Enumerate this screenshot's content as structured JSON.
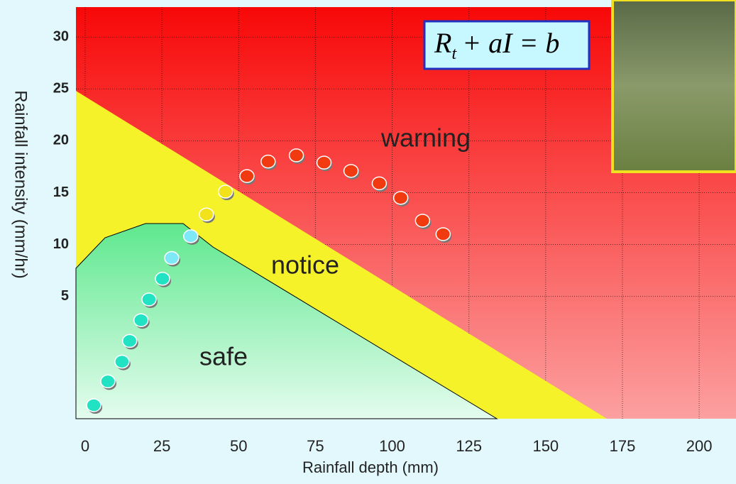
{
  "chart_data": {
    "type": "scatter",
    "x_label": "Rainfall depth  (mm)",
    "y_label": "Rainfall intensity  (mm/hr)",
    "xlim": [
      -3,
      212
    ],
    "ylim": [
      -6.8,
      32.9
    ],
    "xticks": [
      0,
      25,
      50,
      75,
      100,
      125,
      150,
      175,
      200
    ],
    "yticks": [
      5,
      10,
      15,
      20,
      25,
      30
    ],
    "grid": true,
    "annotations": [
      "warning",
      "notice",
      "safe"
    ],
    "equation": [
      "R",
      "t",
      "+ aI = b"
    ],
    "x": [
      2.8,
      7.4,
      12.0,
      14.5,
      18.2,
      20.8,
      25.2,
      28.2,
      34.4,
      39.5,
      45.7,
      52.7,
      59.6,
      68.8,
      77.8,
      86.6,
      95.8,
      102.8,
      109.9,
      116.6
    ],
    "values": [
      -5.5,
      -3.2,
      -1.3,
      0.7,
      2.7,
      4.7,
      6.7,
      8.7,
      10.8,
      12.9,
      15.1,
      16.6,
      18.0,
      18.6,
      17.9,
      17.1,
      15.9,
      14.5,
      12.3,
      11.0
    ],
    "colors": [
      "#22e2c4",
      "#22e2c4",
      "#22e2c4",
      "#22e2c4",
      "#22e2c4",
      "#22e2c4",
      "#22e2c4",
      "#7ee8f6",
      "#7ee8f6",
      "#f2e21c",
      "#f2e21c",
      "#f23a10",
      "#f23a10",
      "#f23a10",
      "#f23a10",
      "#f23a10",
      "#f23a10",
      "#f23a10",
      "#f23a10",
      "#f23a10"
    ]
  }
}
